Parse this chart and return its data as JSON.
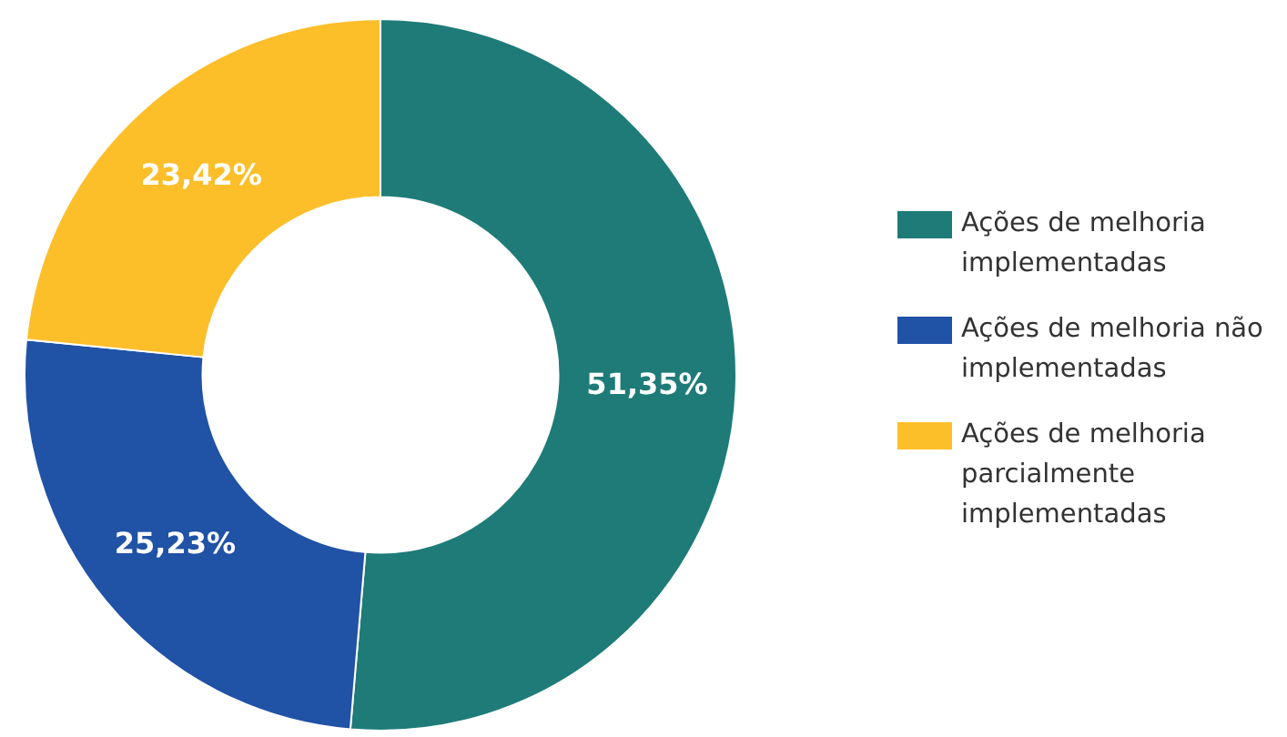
{
  "chart_data": {
    "type": "donut",
    "categories": [
      "Ações de melhoria implementadas",
      "Ações de melhoria não implementadas",
      "Ações de melhoria parcialmente implementadas"
    ],
    "values": [
      51.35,
      25.23,
      23.42
    ],
    "colors": [
      "#1e7b78",
      "#2052a6",
      "#fcbf2a"
    ],
    "value_labels": [
      "51,35%",
      "25,23%",
      "23,42%"
    ],
    "legend": "right"
  }
}
